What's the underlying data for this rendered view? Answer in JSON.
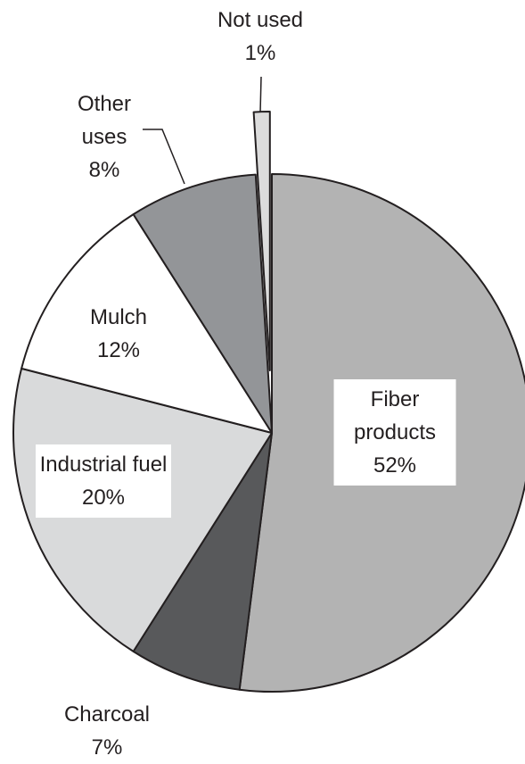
{
  "chart_data": {
    "type": "pie",
    "categories": [
      "Fiber products",
      "Charcoal",
      "Industrial fuel",
      "Mulch",
      "Other uses",
      "Not used"
    ],
    "values": [
      52,
      7,
      20,
      12,
      8,
      1
    ],
    "value_labels": [
      "52%",
      "7%",
      "20%",
      "12%",
      "8%",
      "1%"
    ],
    "colors": [
      "#b3b3b3",
      "#58595b",
      "#d9dadb",
      "#ffffff",
      "#939598",
      "#dcdcdc"
    ]
  }
}
